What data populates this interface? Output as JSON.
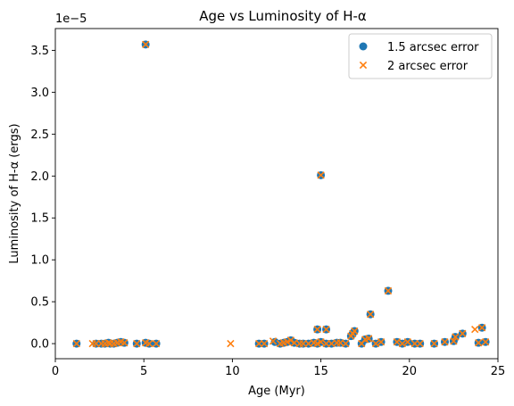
{
  "chart_data": {
    "type": "scatter",
    "title": "Age vs Luminosity of H-α",
    "xlabel": "Age (Myr)",
    "ylabel": "Luminosity of H-α (ergs)",
    "offset_text": "1e−5",
    "xlim": [
      0,
      25
    ],
    "ylim": [
      -0.18,
      3.76
    ],
    "xticks": [
      0,
      5,
      10,
      15,
      20,
      25
    ],
    "yticks": [
      0.0,
      0.5,
      1.0,
      1.5,
      2.0,
      2.5,
      3.0,
      3.5
    ],
    "xtick_labels": [
      "0",
      "5",
      "10",
      "15",
      "20",
      "25"
    ],
    "ytick_labels": [
      "0.0",
      "0.5",
      "1.0",
      "1.5",
      "2.0",
      "2.5",
      "3.0",
      "3.5"
    ],
    "legend_position": "top-right",
    "colors": {
      "series1": "#1f77b4",
      "series2": "#ff7f0e"
    },
    "series": [
      {
        "name": "1.5 arcsec error",
        "marker": "circle",
        "x": [
          1.2,
          2.3,
          2.6,
          2.8,
          3.0,
          3.1,
          3.3,
          3.5,
          3.7,
          3.9,
          4.6,
          5.1,
          5.3,
          5.7,
          11.5,
          11.8,
          12.4,
          12.7,
          12.9,
          13.1,
          13.3,
          13.5,
          13.8,
          14.0,
          14.3,
          14.6,
          14.8,
          15.0,
          15.3,
          15.6,
          15.9,
          16.1,
          16.4,
          16.7,
          16.9,
          17.3,
          17.5,
          17.8,
          18.1,
          18.4,
          18.8,
          19.3,
          19.6,
          19.9,
          20.3,
          20.6,
          21.4,
          22.0,
          22.5,
          22.6,
          23.0,
          23.9,
          24.1,
          24.3,
          5.1,
          15.0,
          15.3,
          14.8,
          17.7,
          16.8
        ],
        "y": [
          0.0,
          0.0,
          0.0,
          0.0,
          0.01,
          0.0,
          0.0,
          0.01,
          0.02,
          0.01,
          0.0,
          0.01,
          0.0,
          0.0,
          0.0,
          0.0,
          0.02,
          0.0,
          0.01,
          0.02,
          0.04,
          0.01,
          0.0,
          0.0,
          0.0,
          0.01,
          0.0,
          0.02,
          0.0,
          0.0,
          0.01,
          0.01,
          0.0,
          0.09,
          0.15,
          0.0,
          0.05,
          0.35,
          0.0,
          0.02,
          0.63,
          0.02,
          0.0,
          0.02,
          0.0,
          0.0,
          0.0,
          0.02,
          0.03,
          0.08,
          0.12,
          0.01,
          0.19,
          0.02,
          3.57,
          2.01,
          0.17,
          0.17,
          0.06,
          0.12
        ]
      },
      {
        "name": "2 arcsec error",
        "marker": "x",
        "x": [
          1.2,
          2.1,
          2.3,
          2.6,
          2.8,
          3.0,
          3.1,
          3.3,
          3.5,
          3.7,
          3.9,
          4.6,
          5.1,
          5.3,
          5.7,
          9.9,
          11.5,
          11.8,
          12.3,
          12.7,
          12.9,
          13.1,
          13.3,
          13.5,
          13.8,
          14.0,
          14.3,
          14.6,
          14.8,
          15.0,
          15.3,
          15.6,
          15.9,
          16.1,
          16.4,
          16.7,
          16.9,
          17.3,
          17.5,
          17.8,
          18.1,
          18.4,
          18.8,
          19.3,
          19.6,
          19.9,
          20.3,
          20.6,
          21.4,
          22.0,
          22.5,
          22.6,
          23.0,
          23.7,
          23.9,
          24.1,
          24.3,
          5.1,
          15.0,
          15.3,
          14.8,
          17.7,
          16.8
        ],
        "y": [
          0.0,
          0.0,
          0.0,
          0.0,
          0.0,
          0.01,
          0.0,
          0.0,
          0.01,
          0.02,
          0.01,
          0.0,
          0.01,
          0.0,
          0.0,
          0.0,
          0.0,
          0.0,
          0.03,
          0.0,
          0.01,
          0.02,
          0.04,
          0.01,
          0.0,
          0.0,
          0.0,
          0.01,
          0.0,
          0.02,
          0.0,
          0.0,
          0.01,
          0.01,
          0.0,
          0.09,
          0.15,
          0.0,
          0.05,
          0.35,
          0.0,
          0.02,
          0.63,
          0.02,
          0.0,
          0.02,
          0.0,
          0.0,
          0.0,
          0.02,
          0.03,
          0.08,
          0.12,
          0.17,
          0.01,
          0.19,
          0.02,
          3.57,
          2.01,
          0.17,
          0.17,
          0.06,
          0.12
        ]
      }
    ]
  }
}
